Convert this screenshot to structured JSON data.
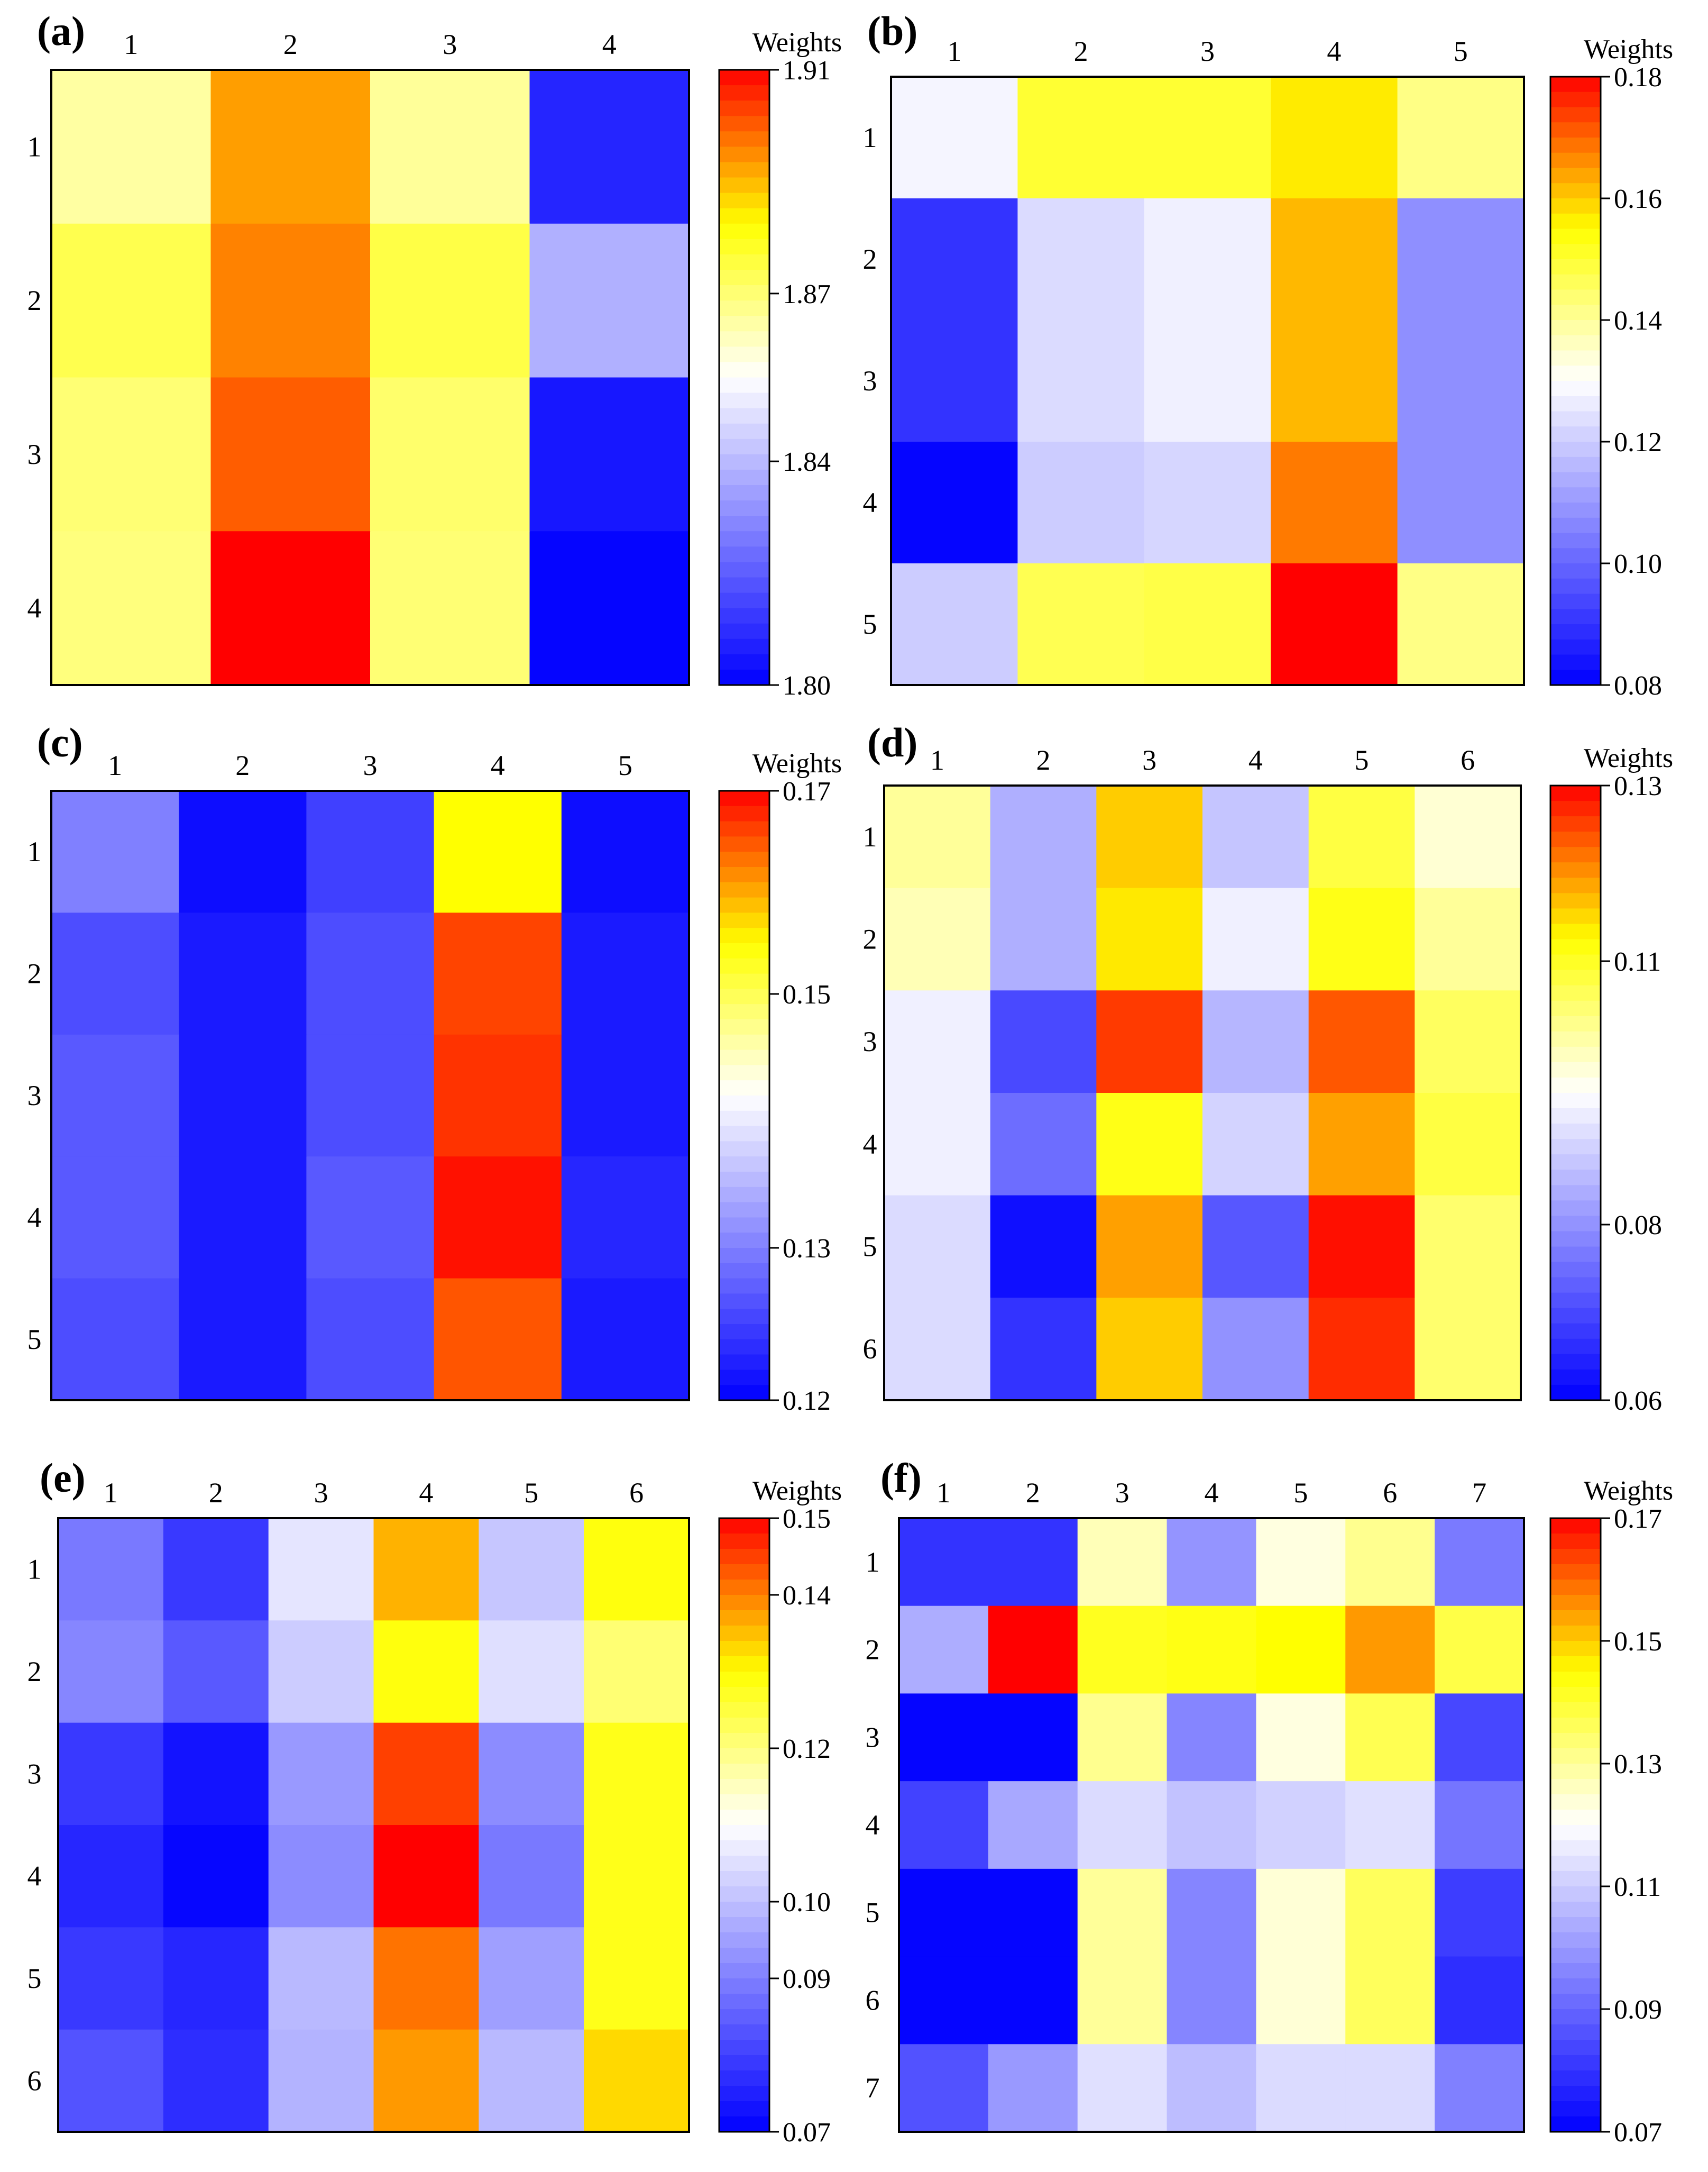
{
  "figure": {
    "colormap_stops": [
      "#0000ff",
      "#ffffff",
      "#ffff00",
      "#ff0000"
    ],
    "colorbar_title": "Weights"
  },
  "chart_data": [
    {
      "type": "heatmap",
      "panel_label": "(a)",
      "x_ticks": [
        "1",
        "2",
        "3",
        "4"
      ],
      "y_ticks": [
        "1",
        "2",
        "3",
        "4"
      ],
      "colorbar": {
        "title": "Weights",
        "min": 1.8,
        "mid": 1.855,
        "max": 1.91,
        "ticks": [
          "1.80",
          "1.84",
          "1.87",
          "1.91"
        ]
      },
      "values": [
        [
          1.865,
          1.893,
          1.866,
          1.808
        ],
        [
          1.874,
          1.896,
          1.875,
          1.838
        ],
        [
          1.87,
          1.9,
          1.871,
          1.805
        ],
        [
          1.869,
          1.91,
          1.87,
          1.801
        ]
      ]
    },
    {
      "type": "heatmap",
      "panel_label": "(b)",
      "x_ticks": [
        "1",
        "2",
        "3",
        "4",
        "5"
      ],
      "y_ticks": [
        "1",
        "2",
        "3",
        "4",
        "5"
      ],
      "colorbar": {
        "title": "Weights",
        "min": 0.08,
        "mid": 0.13,
        "max": 0.18,
        "ticks": [
          "0.08",
          "0.10",
          "0.12",
          "0.14",
          "0.16",
          "0.18"
        ]
      },
      "values": [
        [
          0.128,
          0.15,
          0.15,
          0.157,
          0.142
        ],
        [
          0.09,
          0.123,
          0.127,
          0.162,
          0.108
        ],
        [
          0.09,
          0.123,
          0.127,
          0.162,
          0.108
        ],
        [
          0.081,
          0.12,
          0.122,
          0.168,
          0.108
        ],
        [
          0.12,
          0.147,
          0.148,
          0.18,
          0.142
        ]
      ]
    },
    {
      "type": "heatmap",
      "panel_label": "(c)",
      "x_ticks": [
        "1",
        "2",
        "3",
        "4",
        "5"
      ],
      "y_ticks": [
        "1",
        "2",
        "3",
        "4",
        "5"
      ],
      "colorbar": {
        "title": "Weights",
        "min": 0.12,
        "mid": 0.14,
        "max": 0.17,
        "ticks": [
          "0.12",
          "0.13",
          "0.15",
          "0.17"
        ]
      },
      "values": [
        [
          0.13,
          0.121,
          0.125,
          0.155,
          0.121
        ],
        [
          0.126,
          0.122,
          0.126,
          0.166,
          0.122
        ],
        [
          0.127,
          0.122,
          0.126,
          0.167,
          0.122
        ],
        [
          0.127,
          0.122,
          0.127,
          0.169,
          0.123
        ],
        [
          0.126,
          0.122,
          0.126,
          0.165,
          0.122
        ]
      ]
    },
    {
      "type": "heatmap",
      "panel_label": "(d)",
      "x_ticks": [
        "1",
        "2",
        "3",
        "4",
        "5",
        "6"
      ],
      "y_ticks": [
        "1",
        "2",
        "3",
        "4",
        "5",
        "6"
      ],
      "colorbar": {
        "title": "Weights",
        "min": 0.06,
        "mid": 0.095,
        "max": 0.13,
        "ticks": [
          "0.06",
          "0.08",
          "0.11",
          "0.13"
        ]
      },
      "values": [
        [
          0.102,
          0.084,
          0.116,
          0.087,
          0.108,
          0.098
        ],
        [
          0.1,
          0.084,
          0.114,
          0.093,
          0.111,
          0.102
        ],
        [
          0.093,
          0.07,
          0.126,
          0.085,
          0.124,
          0.106
        ],
        [
          0.093,
          0.075,
          0.111,
          0.089,
          0.119,
          0.108
        ],
        [
          0.09,
          0.062,
          0.119,
          0.072,
          0.129,
          0.105
        ],
        [
          0.09,
          0.067,
          0.116,
          0.08,
          0.127,
          0.105
        ]
      ]
    },
    {
      "type": "heatmap",
      "panel_label": "(e)",
      "x_ticks": [
        "1",
        "2",
        "3",
        "4",
        "5",
        "6"
      ],
      "y_ticks": [
        "1",
        "2",
        "3",
        "4",
        "5",
        "6"
      ],
      "colorbar": {
        "title": "Weights",
        "min": 0.07,
        "mid": 0.11,
        "max": 0.15,
        "ticks": [
          "0.07",
          "0.09",
          "0.10",
          "0.12",
          "0.14",
          "0.15"
        ]
      },
      "values": [
        [
          0.089,
          0.079,
          0.106,
          0.136,
          0.101,
          0.129
        ],
        [
          0.091,
          0.084,
          0.102,
          0.129,
          0.105,
          0.121
        ],
        [
          0.079,
          0.073,
          0.094,
          0.145,
          0.092,
          0.128
        ],
        [
          0.076,
          0.071,
          0.092,
          0.15,
          0.089,
          0.128
        ],
        [
          0.079,
          0.076,
          0.099,
          0.141,
          0.095,
          0.128
        ],
        [
          0.083,
          0.077,
          0.098,
          0.138,
          0.099,
          0.133
        ]
      ]
    },
    {
      "type": "heatmap",
      "panel_label": "(f)",
      "x_ticks": [
        "1",
        "2",
        "3",
        "4",
        "5",
        "6",
        "7"
      ],
      "y_ticks": [
        "1",
        "2",
        "3",
        "4",
        "5",
        "6",
        "7"
      ],
      "colorbar": {
        "title": "Weights",
        "min": 0.07,
        "mid": 0.12,
        "max": 0.17,
        "ticks": [
          "0.07",
          "0.09",
          "0.11",
          "0.13",
          "0.15",
          "0.17"
        ]
      },
      "values": [
        [
          0.08,
          0.08,
          0.127,
          0.099,
          0.123,
          0.131,
          0.094
        ],
        [
          0.104,
          0.17,
          0.142,
          0.143,
          0.145,
          0.155,
          0.138
        ],
        [
          0.071,
          0.071,
          0.131,
          0.096,
          0.123,
          0.137,
          0.084
        ],
        [
          0.083,
          0.103,
          0.113,
          0.108,
          0.111,
          0.114,
          0.093
        ],
        [
          0.071,
          0.071,
          0.13,
          0.096,
          0.124,
          0.136,
          0.082
        ],
        [
          0.071,
          0.071,
          0.13,
          0.096,
          0.124,
          0.136,
          0.079
        ],
        [
          0.086,
          0.1,
          0.114,
          0.107,
          0.113,
          0.113,
          0.095
        ]
      ]
    }
  ]
}
